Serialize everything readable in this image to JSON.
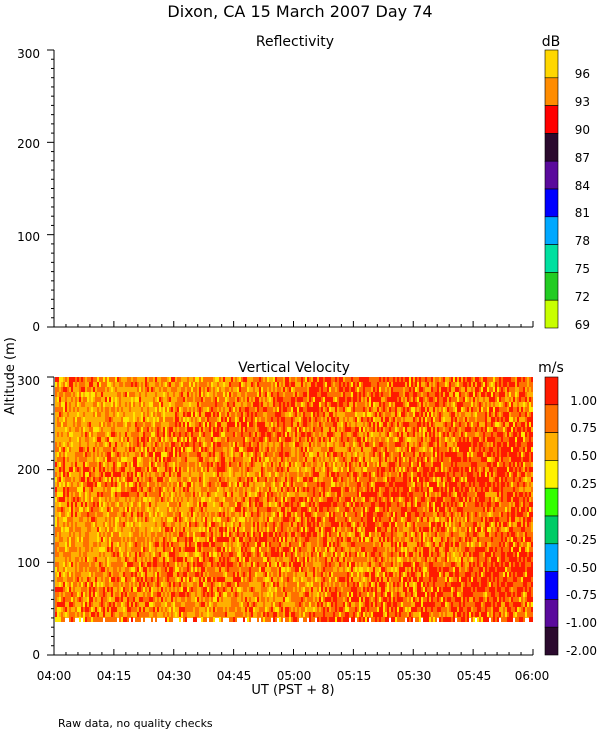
{
  "page": {
    "title": "Dixon, CA 15 March 2007  Day  74",
    "footer": "Raw data, no quality checks"
  },
  "chart_data": [
    {
      "type": "heatmap",
      "title": "Reflectivity",
      "ylabel": "Altitude (m)",
      "xlim": [
        "04:00",
        "06:00"
      ],
      "ylim": [
        0,
        300
      ],
      "yticks": [
        "0",
        "100",
        "200",
        "300"
      ],
      "data": [],
      "colorbar": {
        "unit": "dB",
        "labels": [
          "96",
          "93",
          "90",
          "87",
          "84",
          "81",
          "78",
          "75",
          "72",
          "69"
        ],
        "colors": [
          "#FFD700",
          "#FF8C00",
          "#FF0000",
          "#2B0A2E",
          "#5A0A9C",
          "#0000FF",
          "#00A8FF",
          "#00E0A0",
          "#22CC22",
          "#C8FF00"
        ]
      }
    },
    {
      "type": "heatmap",
      "title": "Vertical Velocity",
      "ylabel": "Altitude (m)",
      "xlabel": "UT  (PST + 8)",
      "xlim": [
        "04:00",
        "06:00"
      ],
      "ylim": [
        0,
        300
      ],
      "xticks": [
        "04:00",
        "04:15",
        "04:30",
        "04:45",
        "05:00",
        "05:15",
        "05:30",
        "05:45",
        "06:00"
      ],
      "yticks": [
        "0",
        "100",
        "200",
        "300"
      ],
      "data_altitude_range": [
        40,
        300
      ],
      "typical_velocity_range": [
        0.5,
        1.0
      ],
      "colorbar": {
        "unit": "m/s",
        "labels": [
          "1.00",
          "0.75",
          "0.50",
          "0.25",
          "0.00",
          "-0.25",
          "-0.50",
          "-0.75",
          "-1.00",
          "-2.00"
        ],
        "colors": [
          "#FF1A00",
          "#FF7000",
          "#FFB000",
          "#FFF200",
          "#33FF00",
          "#00CC66",
          "#00A8FF",
          "#0000FF",
          "#5A0A9C",
          "#2B0A2E"
        ]
      }
    }
  ]
}
